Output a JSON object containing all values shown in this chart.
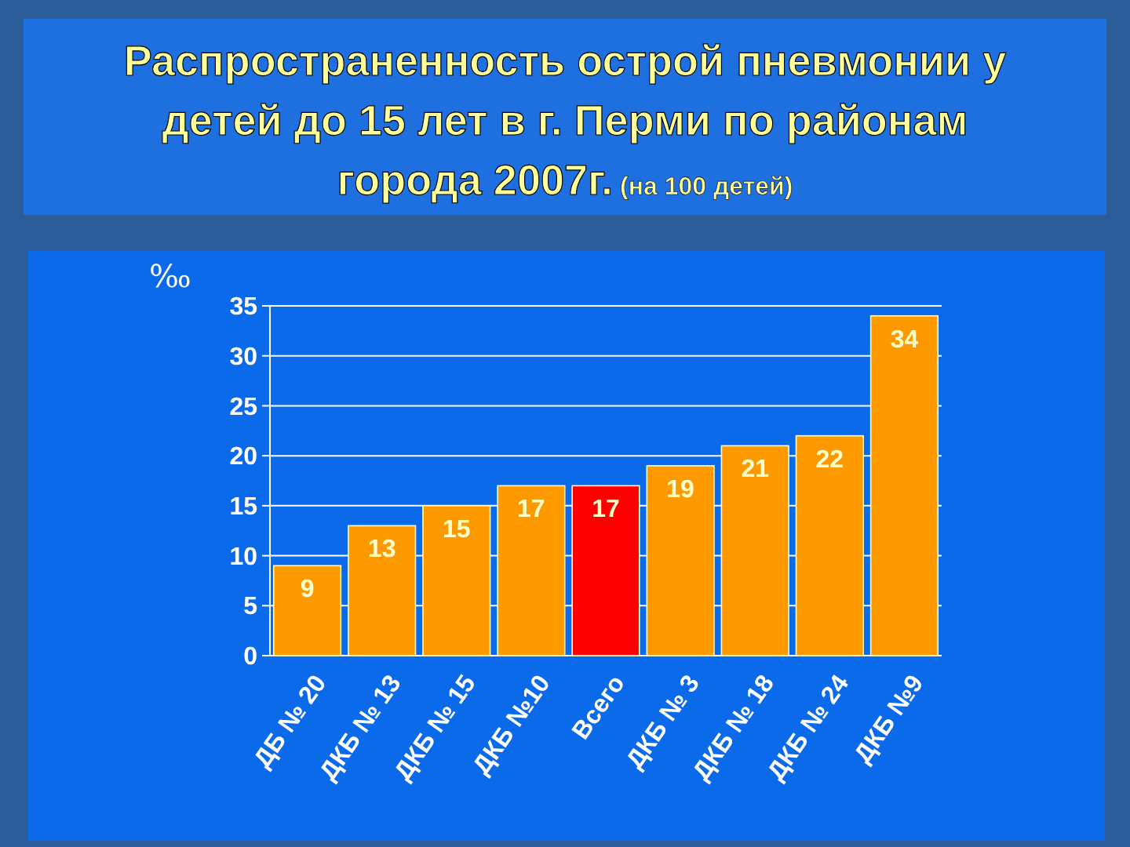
{
  "chart_data": {
    "type": "bar",
    "title": "Распространенность острой пневмонии у детей до 15 лет в г. Перми по районам города 2007г.",
    "subtitle": "(на 100 детей)",
    "ylabel": "‰",
    "categories": [
      "ДБ № 20",
      "ДКБ № 13",
      "ДКБ № 15",
      "ДКБ №10",
      "Всего",
      "ДКБ № 3",
      "ДКБ № 18",
      "ДКБ № 24",
      "ДКБ №9"
    ],
    "values": [
      9,
      13,
      15,
      17,
      17,
      19,
      21,
      22,
      34
    ],
    "colors": [
      "#ff9900",
      "#ff9900",
      "#ff9900",
      "#ff9900",
      "#ff0000",
      "#ff9900",
      "#ff9900",
      "#ff9900",
      "#ff9900"
    ],
    "ylim": [
      0,
      35
    ],
    "yticks": [
      0,
      5,
      10,
      15,
      20,
      25,
      30,
      35
    ],
    "grid": "y",
    "data_labels": true
  }
}
